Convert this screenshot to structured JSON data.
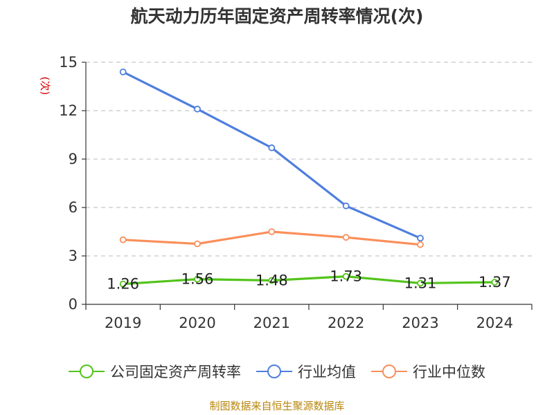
{
  "chart_data": {
    "type": "line",
    "title": "航天动力历年固定资产周转率情况(次)",
    "ylabel": "(次)",
    "categories": [
      "2019",
      "2020",
      "2021",
      "2022",
      "2023",
      "2024"
    ],
    "ylim": [
      0,
      15
    ],
    "yticks": [
      0,
      3,
      6,
      9,
      12,
      15
    ],
    "grid": true,
    "legend_position": "bottom",
    "series": [
      {
        "name": "公司固定资产周转率",
        "color": "#52c41a",
        "values": [
          1.26,
          1.56,
          1.48,
          1.73,
          1.31,
          1.37
        ],
        "labels": [
          "1.26",
          "1.56",
          "1.48",
          "1.73",
          "1.31",
          "1.37"
        ]
      },
      {
        "name": "行业均值",
        "color": "#4e7ede",
        "values": [
          14.4,
          12.1,
          9.7,
          6.1,
          4.1,
          null
        ]
      },
      {
        "name": "行业中位数",
        "color": "#fa8f5a",
        "values": [
          4.0,
          3.75,
          4.5,
          4.15,
          3.7,
          null
        ]
      }
    ],
    "source": "制图数据来自恒生聚源数据库"
  }
}
